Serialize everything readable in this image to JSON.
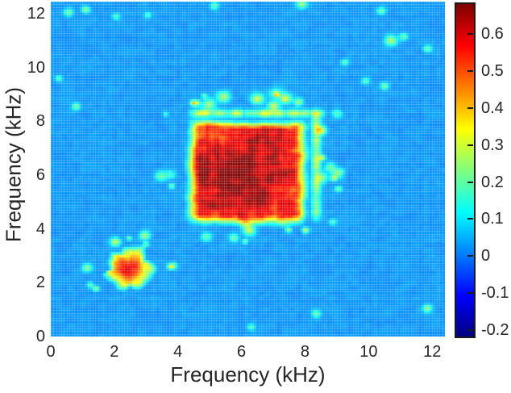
{
  "figure": {
    "background_color": "#ffffff",
    "text_color": "#262626",
    "title": ""
  },
  "chart_data": {
    "type": "heatmap",
    "title": "",
    "xlabel": "Frequency (kHz)",
    "ylabel": "Frequency (kHz)",
    "x_range_khz": [
      0,
      12.4
    ],
    "y_range_khz": [
      0,
      12.45
    ],
    "x_ticks": [
      0,
      2,
      4,
      6,
      8,
      10,
      12
    ],
    "y_ticks": [
      0,
      2,
      4,
      6,
      8,
      10,
      12
    ],
    "grid_on": true,
    "grid_line_color": "#ffffff",
    "grid_line_alpha": 0.22,
    "cell_size_khz": 0.083,
    "colormap": "jet",
    "color_scale": {
      "min": -0.213,
      "max": 0.685,
      "ticks": [
        0.6,
        0.5,
        0.4,
        0.3,
        0.2,
        0.1,
        0,
        -0.1,
        -0.2
      ],
      "tick_labels": [
        "0.6",
        "0.5",
        "0.4",
        "0.3",
        "0.2",
        "0.1",
        "0",
        "-0.1",
        "-0.2"
      ]
    },
    "background_value": 0.03,
    "background_noise_amp": 0.02,
    "features": {
      "main_blob": {
        "shape": "square",
        "x_rise": [
          4.15,
          4.7
        ],
        "x_fall": [
          7.7,
          8.2
        ],
        "y_rise": [
          4.0,
          4.55
        ],
        "y_fall": [
          7.75,
          8.15
        ],
        "edge_noise_amp": 0.22,
        "peak_center": [
          5.9,
          6.0
        ],
        "peak_value": 0.64,
        "base_value": 0.42,
        "peak_sigma2": 5.0,
        "texture_amp": 0.09
      },
      "secondary_blob": {
        "shape": "round",
        "center": [
          2.45,
          2.55
        ],
        "core_radius": 0.55,
        "outer_radius": 0.82,
        "edge_noise_amp": 0.28,
        "peak_value": 0.56,
        "ring_value": 0.18,
        "texture_amp": 0.08
      },
      "sidelobe_bands": [
        {
          "orientation": "vertical",
          "center_khz": 8.35,
          "width_khz": 0.1,
          "span": [
            4.3,
            8.3
          ],
          "value_min": 0.1,
          "value_max": 0.35
        },
        {
          "orientation": "horizontal",
          "center_khz": 8.3,
          "width_khz": 0.1,
          "span": [
            4.4,
            8.5
          ],
          "value_min": 0.1,
          "value_max": 0.38
        }
      ],
      "speckles": [
        {
          "x": 0.55,
          "y": 12.05,
          "v": 0.2,
          "r": 0.1
        },
        {
          "x": 1.1,
          "y": 12.15,
          "v": 0.22,
          "r": 0.09
        },
        {
          "x": 2.05,
          "y": 11.9,
          "v": 0.18,
          "r": 0.08
        },
        {
          "x": 3.05,
          "y": 11.95,
          "v": 0.17,
          "r": 0.07
        },
        {
          "x": 0.25,
          "y": 9.6,
          "v": 0.18,
          "r": 0.08
        },
        {
          "x": 0.8,
          "y": 8.55,
          "v": 0.2,
          "r": 0.09
        },
        {
          "x": 5.15,
          "y": 12.3,
          "v": 0.2,
          "r": 0.09
        },
        {
          "x": 7.9,
          "y": 12.35,
          "v": 0.24,
          "r": 0.11
        },
        {
          "x": 10.4,
          "y": 12.1,
          "v": 0.2,
          "r": 0.09
        },
        {
          "x": 10.7,
          "y": 11.0,
          "v": 0.26,
          "r": 0.13
        },
        {
          "x": 11.1,
          "y": 11.15,
          "v": 0.2,
          "r": 0.09
        },
        {
          "x": 11.85,
          "y": 10.7,
          "v": 0.2,
          "r": 0.09
        },
        {
          "x": 9.25,
          "y": 10.2,
          "v": 0.18,
          "r": 0.08
        },
        {
          "x": 9.9,
          "y": 9.5,
          "v": 0.18,
          "r": 0.08
        },
        {
          "x": 10.5,
          "y": 9.3,
          "v": 0.2,
          "r": 0.09
        },
        {
          "x": 11.85,
          "y": 1.05,
          "v": 0.22,
          "r": 0.1
        },
        {
          "x": 8.35,
          "y": 0.85,
          "v": 0.2,
          "r": 0.09
        },
        {
          "x": 6.3,
          "y": 0.35,
          "v": 0.18,
          "r": 0.08
        }
      ],
      "procedural_speckles": {
        "main_ring_count": 30,
        "main_ring_box": [
          4.15,
          8.35
        ],
        "main_ring_offset": [
          0.15,
          0.7
        ],
        "small_ring_count": 9,
        "small_ring_radius": [
          1.0,
          1.45
        ],
        "value_range": [
          0.13,
          0.29
        ],
        "radius_range": [
          0.05,
          0.14
        ],
        "seed": 1234
      }
    }
  }
}
